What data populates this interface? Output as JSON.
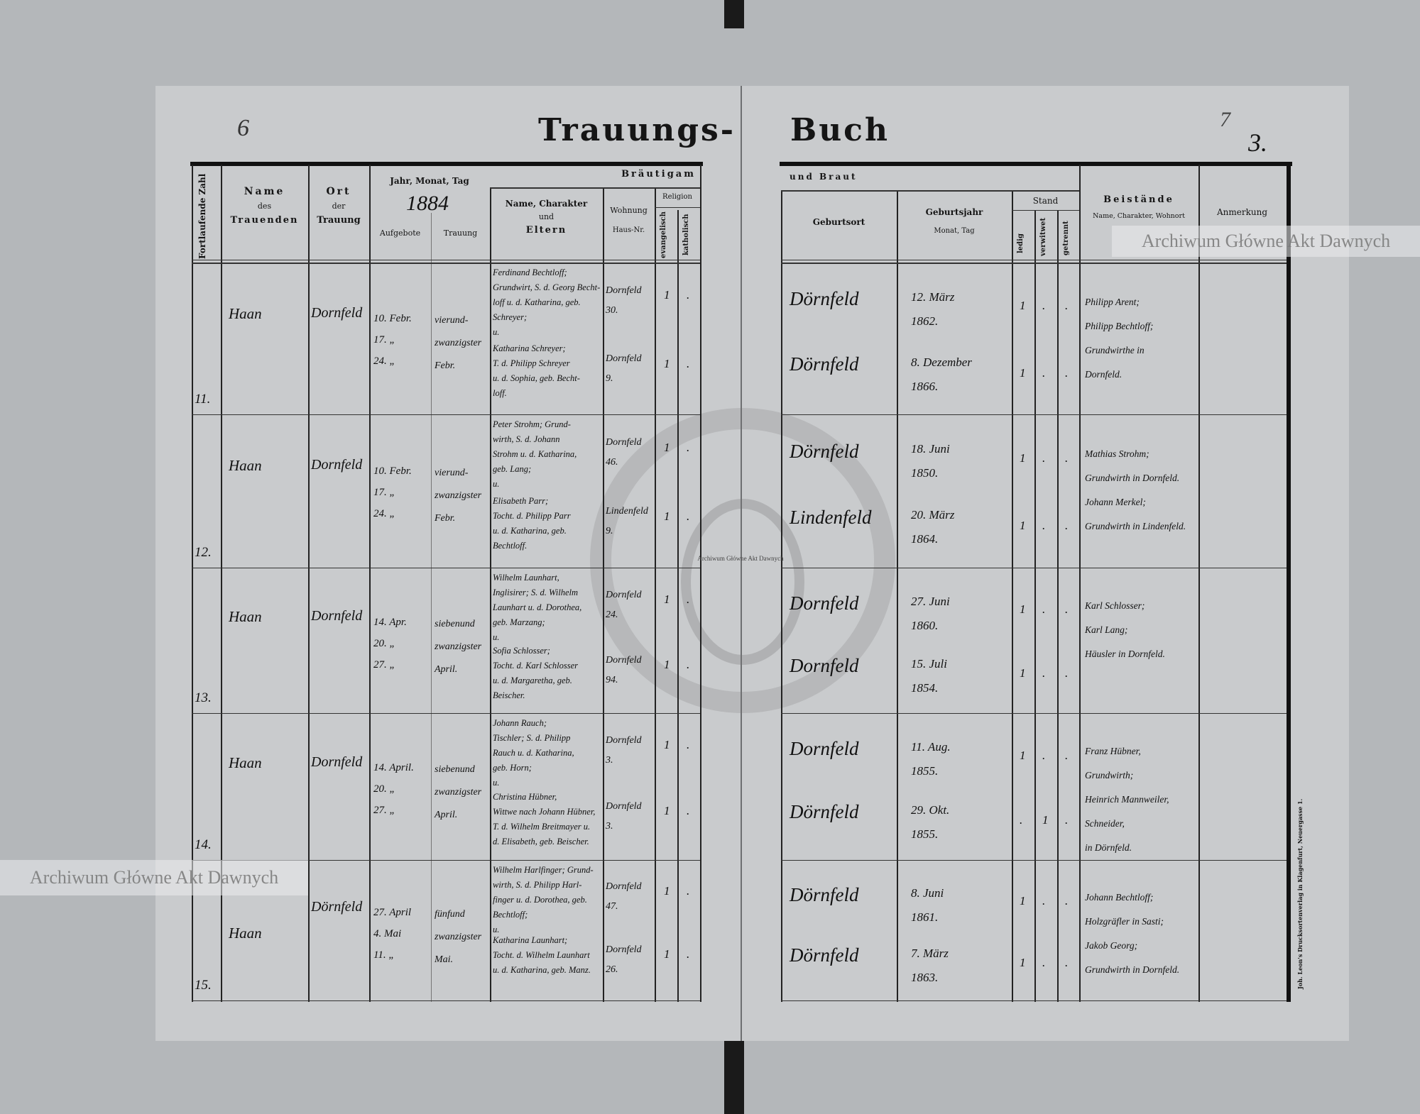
{
  "title": {
    "left": "Trauungs-",
    "right": "Buch"
  },
  "page_numbers": {
    "left": "6",
    "right_pencil": "7",
    "right_ink": "3."
  },
  "printer_imprint": "Joh. Leon's Drucksortenverlag in Klagenfurt, Neuergasse 1.",
  "watermark": {
    "text": "Archiwum Główne Akt Dawnych",
    "seal_text": "ARCHIWUM GŁÓWNE AKT DAWNYCH",
    "seal_small": "Archiwum Główne Akt Dawnych"
  },
  "left_header": {
    "number": "Fortlaufende Zahl",
    "name": [
      "Name",
      "des",
      "Trauenden"
    ],
    "place": [
      "Ort",
      "der",
      "Trauung"
    ],
    "date": "Jahr, Monat, Tag",
    "year": "1884",
    "banns": "Aufgebote",
    "wedding": "Trauung",
    "groom": "Bräutigam",
    "parents": [
      "Name, Charakter",
      "und",
      "Eltern"
    ],
    "residence": [
      "Wohnung",
      "Haus-Nr."
    ],
    "religion": "Religion",
    "evangelical": "evangelisch",
    "catholic": "katholisch"
  },
  "right_header": {
    "bride": "und Braut",
    "birthplace": "Geburtsort",
    "birthyear": [
      "Geburtsjahr",
      "Monat, Tag"
    ],
    "status": "Stand",
    "single": "ledig",
    "widowed": "verwitwet",
    "separated": "getrennt",
    "witnesses": [
      "Beistände",
      "Name, Charakter, Wohnort"
    ],
    "remarks": "Anmerkung"
  },
  "rows": [
    {
      "number": "11.",
      "name": "Haan",
      "place": "Dornfeld",
      "banns": [
        "10. Febr.",
        "17. „",
        "24. „"
      ],
      "wedding": [
        "vierund-",
        "zwanzigster",
        "Febr."
      ],
      "groom": {
        "lines": [
          "Ferdinand Bechtloff;",
          "Grundwirt, S. d. Georg Becht-",
          "loff u. d. Katharina, geb.",
          "Schreyer;",
          "u."
        ],
        "residence": [
          "Dornfeld",
          "30."
        ],
        "evangelical": "1",
        "catholic": ".",
        "birthplace": "Dörnfeld",
        "birthdate": [
          "12. März",
          "1862."
        ],
        "status": [
          "1",
          ".",
          "."
        ]
      },
      "bride": {
        "lines": [
          "Katharina Schreyer;",
          "T. d. Philipp Schreyer",
          "u. d. Sophia, geb. Becht-",
          "loff."
        ],
        "residence": [
          "Dornfeld",
          "9."
        ],
        "evangelical": "1",
        "catholic": ".",
        "birthplace": "Dörnfeld",
        "birthdate": [
          "8. Dezember",
          "1866."
        ],
        "status": [
          "1",
          ".",
          "."
        ]
      },
      "witnesses": [
        "Philipp Arent;",
        "Philipp Bechtloff;",
        "Grundwirthe in",
        "Dornfeld."
      ]
    },
    {
      "number": "12.",
      "name": "Haan",
      "place": "Dornfeld",
      "banns": [
        "10. Febr.",
        "17. „",
        "24. „"
      ],
      "wedding": [
        "vierund-",
        "zwanzigster",
        "Febr."
      ],
      "groom": {
        "lines": [
          "Peter Strohm; Grund-",
          "wirth, S. d. Johann",
          "Strohm u. d. Katharina,",
          "geb. Lang;",
          "u."
        ],
        "residence": [
          "Dornfeld",
          "46."
        ],
        "evangelical": "1",
        "catholic": ".",
        "birthplace": "Dörnfeld",
        "birthdate": [
          "18. Juni",
          "1850."
        ],
        "status": [
          "1",
          ".",
          "."
        ]
      },
      "bride": {
        "lines": [
          "Elisabeth Parr;",
          "Tocht. d. Philipp Parr",
          "u. d. Katharina, geb.",
          "Bechtloff."
        ],
        "residence": [
          "Lindenfeld",
          "9."
        ],
        "evangelical": "1",
        "catholic": ".",
        "birthplace": "Lindenfeld",
        "birthdate": [
          "20. März",
          "1864."
        ],
        "status": [
          "1",
          ".",
          "."
        ]
      },
      "witnesses": [
        "Mathias Strohm;",
        "Grundwirth in Dornfeld.",
        "Johann Merkel;",
        "Grundwirth in Lindenfeld."
      ]
    },
    {
      "number": "13.",
      "name": "Haan",
      "place": "Dornfeld",
      "banns": [
        "14. Apr.",
        "20. „",
        "27. „"
      ],
      "wedding": [
        "siebenund",
        "zwanzigster",
        "April."
      ],
      "groom": {
        "lines": [
          "Wilhelm Launhart,",
          "Inglisirer; S. d. Wilhelm",
          "Launhart u. d. Dorothea,",
          "geb. Marzang;",
          "u."
        ],
        "residence": [
          "Dornfeld",
          "24."
        ],
        "evangelical": "1",
        "catholic": ".",
        "birthplace": "Dornfeld",
        "birthdate": [
          "27. Juni",
          "1860."
        ],
        "status": [
          "1",
          ".",
          "."
        ]
      },
      "bride": {
        "lines": [
          "Sofia Schlosser;",
          "Tocht. d. Karl Schlosser",
          "u. d. Margaretha, geb.",
          "Beischer."
        ],
        "residence": [
          "Dornfeld",
          "94."
        ],
        "evangelical": "1",
        "catholic": ".",
        "birthplace": "Dornfeld",
        "birthdate": [
          "15. Juli",
          "1854."
        ],
        "status": [
          "1",
          ".",
          "."
        ]
      },
      "witnesses": [
        "Karl Schlosser;",
        "Karl Lang;",
        "Häusler in Dornfeld."
      ]
    },
    {
      "number": "14.",
      "name": "Haan",
      "place": "Dornfeld",
      "banns": [
        "14. April.",
        "20. „",
        "27. „"
      ],
      "wedding": [
        "siebenund",
        "zwanzigster",
        "April."
      ],
      "groom": {
        "lines": [
          "Johann Rauch;",
          "Tischler; S. d. Philipp",
          "Rauch u. d. Katharina,",
          "geb. Horn;",
          "u."
        ],
        "residence": [
          "Dornfeld",
          "3."
        ],
        "evangelical": "1",
        "catholic": ".",
        "birthplace": "Dornfeld",
        "birthdate": [
          "11. Aug.",
          "1855."
        ],
        "status": [
          "1",
          ".",
          "."
        ]
      },
      "bride": {
        "lines": [
          "Christina Hübner,",
          "Wittwe nach Johann Hübner,",
          "T. d. Wilhelm Breitmayer u.",
          "d. Elisabeth, geb. Beischer."
        ],
        "residence": [
          "Dornfeld",
          "3."
        ],
        "evangelical": "1",
        "catholic": ".",
        "birthplace": "Dörnfeld",
        "birthdate": [
          "29. Okt.",
          "1855."
        ],
        "status": [
          ".",
          "1",
          "."
        ]
      },
      "witnesses": [
        "Franz Hübner,",
        "Grundwirth;",
        "Heinrich Mannweiler,",
        "Schneider,",
        "in Dörnfeld."
      ]
    },
    {
      "number": "15.",
      "name": "Haan",
      "place": "Dörnfeld",
      "banns": [
        "27. April",
        "4. Mai",
        "11. „"
      ],
      "wedding": [
        "fünfund",
        "zwanzigster",
        "Mai."
      ],
      "groom": {
        "lines": [
          "Wilhelm Harlfinger; Grund-",
          "wirth, S. d. Philipp Harl-",
          "finger u. d. Dorothea, geb.",
          "Bechtloff;",
          "u."
        ],
        "residence": [
          "Dornfeld",
          "47."
        ],
        "evangelical": "1",
        "catholic": ".",
        "birthplace": "Dörnfeld",
        "birthdate": [
          "8. Juni",
          "1861."
        ],
        "status": [
          "1",
          ".",
          "."
        ]
      },
      "bride": {
        "lines": [
          "Katharina Launhart;",
          "Tocht. d. Wilhelm Launhart",
          "u. d. Katharina, geb. Manz."
        ],
        "residence": [
          "Dornfeld",
          "26."
        ],
        "evangelical": "1",
        "catholic": ".",
        "birthplace": "Dörnfeld",
        "birthdate": [
          "7. März",
          "1863."
        ],
        "status": [
          "1",
          ".",
          "."
        ]
      },
      "witnesses": [
        "Johann Bechtloff;",
        "Holzgräfler in Sasti;",
        "Jakob Georg;",
        "Grundwirth in Dornfeld."
      ]
    }
  ]
}
